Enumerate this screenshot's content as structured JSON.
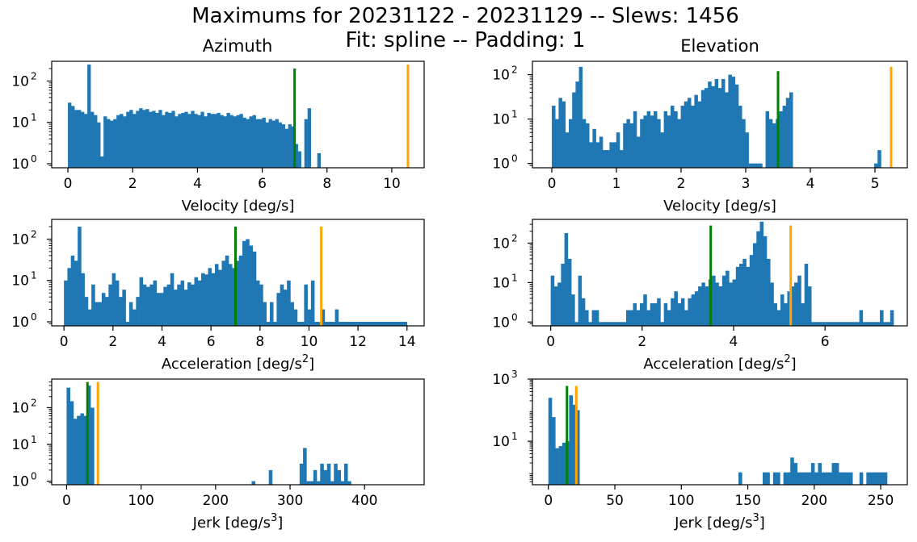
{
  "figure": {
    "title_line1": "Maximums for 20231122 - 20231129 -- Slews: 1456",
    "title_line2": "Fit: spline -- Padding: 1",
    "column_titles": [
      "Azimuth",
      "Elevation"
    ],
    "bar_color": "#1f77b4",
    "limit_colors": {
      "primary": "#008000",
      "secondary": "#ffa500"
    }
  },
  "chart_data": [
    {
      "type": "bar",
      "panel": "az-velocity",
      "title": "Azimuth",
      "xlabel": "Velocity [deg/s]",
      "yscale": "log",
      "xlim": [
        -0.5,
        11
      ],
      "xticks": [
        0,
        2,
        4,
        6,
        8,
        10
      ],
      "ylim": [
        0.8,
        300
      ],
      "yticks": [
        {
          "value": 1,
          "mant": "10",
          "exp": "0"
        },
        {
          "value": 10,
          "mant": "10",
          "exp": "1"
        },
        {
          "value": 100,
          "mant": "10",
          "exp": "2"
        }
      ],
      "bin_width": 0.1,
      "x_start": 0,
      "values": [
        30,
        25,
        20,
        20,
        18,
        16,
        250,
        18,
        15,
        10,
        1.5,
        14,
        12,
        11,
        12,
        15,
        16,
        14,
        18,
        20,
        16,
        19,
        22,
        20,
        21,
        18,
        19,
        17,
        20,
        15,
        18,
        17,
        19,
        14,
        16,
        17,
        18,
        16,
        19,
        16,
        15,
        18,
        14,
        17,
        16,
        16,
        17,
        15,
        14,
        17,
        15,
        14,
        15,
        16,
        13,
        12,
        14,
        15,
        12,
        12,
        13,
        10,
        12,
        11,
        12,
        10,
        9,
        7,
        9,
        8,
        3,
        2,
        0,
        12,
        22,
        0,
        0,
        1.8,
        0,
        0,
        0
      ],
      "limits": [
        {
          "x": 7,
          "color": "#008000",
          "top": 200
        },
        {
          "x": 10.5,
          "color": "#ffa500",
          "top": 250
        }
      ]
    },
    {
      "type": "bar",
      "panel": "el-velocity",
      "title": "Elevation",
      "xlabel": "Velocity [deg/s]",
      "yscale": "log",
      "xlim": [
        -0.3,
        5.5
      ],
      "xticks": [
        0,
        1,
        2,
        3,
        4,
        5
      ],
      "ylim": [
        0.8,
        200
      ],
      "yticks": [
        {
          "value": 1,
          "mant": "10",
          "exp": "0"
        },
        {
          "value": 10,
          "mant": "10",
          "exp": "1"
        },
        {
          "value": 100,
          "mant": "10",
          "exp": "2"
        }
      ],
      "bin_width": 0.0525,
      "x_start": 0,
      "values": [
        20,
        10,
        30,
        25,
        5,
        10,
        40,
        70,
        150,
        10,
        8,
        3,
        6,
        3,
        4,
        2,
        2,
        3,
        3,
        5,
        2,
        8,
        10,
        8,
        15,
        4,
        10,
        12,
        15,
        12,
        15,
        10,
        5,
        15,
        12,
        20,
        15,
        10,
        20,
        25,
        30,
        20,
        35,
        25,
        45,
        50,
        70,
        55,
        80,
        50,
        80,
        40,
        100,
        90,
        60,
        20,
        10,
        5,
        1,
        1,
        1,
        1,
        0,
        15,
        10,
        8,
        10,
        15,
        20,
        30,
        40,
        0,
        0,
        0,
        0,
        0,
        0,
        0,
        0,
        0,
        0,
        0,
        0,
        0,
        0,
        0,
        0,
        0,
        0,
        0,
        0,
        0,
        0,
        0,
        0,
        1,
        2
      ],
      "limits": [
        {
          "x": 3.5,
          "color": "#008000",
          "top": 120
        },
        {
          "x": 5.25,
          "color": "#ffa500",
          "top": 150
        }
      ]
    },
    {
      "type": "bar",
      "panel": "az-acceleration",
      "title": "",
      "xlabel_main": "Acceleration [deg/s",
      "xlabel_sup": "2",
      "xlabel_tail": "]",
      "yscale": "log",
      "xlim": [
        -0.5,
        14.7
      ],
      "xticks": [
        0,
        2,
        4,
        6,
        8,
        10,
        12,
        14
      ],
      "ylim": [
        0.8,
        300
      ],
      "yticks": [
        {
          "value": 1,
          "mant": "10",
          "exp": "0"
        },
        {
          "value": 10,
          "mant": "10",
          "exp": "1"
        },
        {
          "value": 100,
          "mant": "10",
          "exp": "2"
        }
      ],
      "bin_width": 0.14,
      "x_start": 0,
      "values": [
        10,
        20,
        40,
        30,
        200,
        15,
        4,
        2,
        8,
        3,
        3,
        5,
        4,
        8,
        15,
        10,
        4,
        6,
        1,
        3,
        2,
        4,
        12,
        8,
        7,
        8,
        10,
        5,
        5,
        7,
        8,
        15,
        6,
        8,
        10,
        6,
        9,
        8,
        12,
        10,
        15,
        14,
        20,
        15,
        25,
        18,
        30,
        40,
        25,
        20,
        30,
        40,
        90,
        100,
        70,
        50,
        10,
        8,
        3,
        1,
        3,
        1,
        5,
        8,
        6,
        10,
        3,
        2,
        1,
        1,
        8,
        2,
        10,
        1,
        1,
        2,
        1,
        1,
        1,
        2,
        1,
        1,
        1,
        1,
        1,
        1,
        1,
        1,
        1,
        1,
        1,
        1,
        1,
        1,
        1,
        1,
        1,
        1,
        1,
        1
      ],
      "limits": [
        {
          "x": 7,
          "color": "#008000",
          "top": 200
        },
        {
          "x": 10.5,
          "color": "#ffa500",
          "top": 200
        }
      ]
    },
    {
      "type": "bar",
      "panel": "el-acceleration",
      "title": "",
      "xlabel_main": "Acceleration [deg/s",
      "xlabel_sup": "2",
      "xlabel_tail": "]",
      "yscale": "log",
      "xlim": [
        -0.4,
        7.8
      ],
      "xticks": [
        0,
        2,
        4,
        6
      ],
      "ylim": [
        0.8,
        400
      ],
      "yticks": [
        {
          "value": 1,
          "mant": "10",
          "exp": "0"
        },
        {
          "value": 10,
          "mant": "10",
          "exp": "1"
        },
        {
          "value": 100,
          "mant": "10",
          "exp": "2"
        }
      ],
      "bin_width": 0.075,
      "x_start": 0,
      "values": [
        15,
        8,
        10,
        30,
        180,
        40,
        5,
        1,
        15,
        4,
        2,
        1,
        2,
        2,
        1,
        1,
        1,
        1,
        1,
        1,
        1,
        1,
        2,
        2,
        3,
        2,
        3,
        5,
        2,
        3,
        3,
        4,
        1,
        3,
        2,
        4,
        6,
        3,
        4,
        2,
        4,
        5,
        6,
        8,
        10,
        8,
        12,
        15,
        10,
        8,
        15,
        20,
        10,
        12,
        25,
        30,
        40,
        25,
        50,
        100,
        200,
        350,
        150,
        40,
        10,
        3,
        2,
        5,
        3,
        6,
        8,
        10,
        15,
        3,
        30,
        8,
        1,
        1,
        1,
        1,
        1,
        1,
        1,
        1,
        1,
        1,
        1,
        1,
        1,
        1,
        2,
        1,
        1,
        1,
        1,
        1,
        2,
        1,
        1,
        2
      ],
      "limits": [
        {
          "x": 3.5,
          "color": "#008000",
          "top": 280
        },
        {
          "x": 5.25,
          "color": "#ffa500",
          "top": 280
        }
      ]
    },
    {
      "type": "bar",
      "panel": "az-jerk",
      "title": "",
      "xlabel_main": "Jerk [deg/s",
      "xlabel_sup": "3",
      "xlabel_tail": "]",
      "yscale": "log",
      "xlim": [
        -20,
        480
      ],
      "xticks": [
        0,
        100,
        200,
        300,
        400
      ],
      "ylim": [
        0.8,
        600
      ],
      "yticks": [
        {
          "value": 1,
          "mant": "10",
          "exp": "0"
        },
        {
          "value": 10,
          "mant": "10",
          "exp": "1"
        },
        {
          "value": 100,
          "mant": "10",
          "exp": "2"
        }
      ],
      "bin_width": 4.6,
      "x_start": 0,
      "values": [
        350,
        150,
        50,
        60,
        70,
        60,
        400,
        100,
        0,
        0,
        0,
        0,
        0,
        0,
        0,
        0,
        0,
        0,
        0,
        0,
        0,
        0,
        0,
        0,
        0,
        0,
        0,
        0,
        0,
        0,
        0,
        0,
        0,
        0,
        0,
        0,
        0,
        0,
        0,
        0,
        0,
        0,
        0,
        0,
        0,
        0,
        0,
        0,
        0,
        0,
        0,
        0,
        0,
        0,
        1,
        0,
        0,
        0,
        0,
        2,
        0,
        0,
        0,
        0,
        0,
        0,
        0,
        0,
        3,
        8,
        1,
        1,
        2,
        1,
        3,
        2,
        3,
        1,
        3,
        2,
        1,
        3,
        1,
        0,
        0,
        0,
        0,
        0,
        0,
        0,
        0,
        0,
        0,
        0,
        0,
        0,
        0,
        0,
        0,
        0
      ],
      "limits": [
        {
          "x": 28,
          "color": "#008000",
          "top": 500
        },
        {
          "x": 42,
          "color": "#ffa500",
          "top": 500
        }
      ]
    },
    {
      "type": "bar",
      "panel": "el-jerk",
      "title": "",
      "xlabel_main": "Jerk [deg/s",
      "xlabel_sup": "3",
      "xlabel_tail": "]",
      "yscale": "log",
      "xlim": [
        -12,
        270
      ],
      "xticks": [
        0,
        50,
        100,
        150,
        200,
        250
      ],
      "ylim": [
        0.4,
        1000
      ],
      "yticks": [
        {
          "value": 10,
          "mant": "10",
          "exp": "1"
        },
        {
          "value": 1000,
          "mant": "10",
          "exp": "3"
        }
      ],
      "bin_width": 2.6,
      "x_start": 0,
      "values": [
        250,
        60,
        6,
        7,
        9,
        10,
        300,
        150,
        100,
        0,
        0,
        0,
        0,
        0,
        0,
        0,
        0,
        0,
        0,
        0,
        0,
        0,
        0,
        0,
        0,
        0,
        0,
        0,
        0,
        0,
        0,
        0,
        0,
        0,
        0,
        0,
        0,
        0,
        0,
        0,
        0,
        0,
        0,
        0,
        0,
        0,
        0,
        0,
        0,
        0,
        0,
        0,
        0,
        0,
        0,
        1,
        0,
        0,
        0,
        0,
        0,
        0,
        1,
        1,
        0,
        1,
        1,
        0,
        1,
        1,
        3,
        2,
        1,
        1,
        1,
        1,
        2,
        1,
        2,
        1,
        1,
        1,
        2,
        2,
        1,
        1,
        1,
        1,
        0,
        0,
        1,
        0,
        1,
        1,
        1,
        1,
        1,
        1
      ],
      "limits": [
        {
          "x": 14,
          "color": "#008000",
          "top": 600
        },
        {
          "x": 21,
          "color": "#ffa500",
          "top": 600
        }
      ]
    }
  ]
}
